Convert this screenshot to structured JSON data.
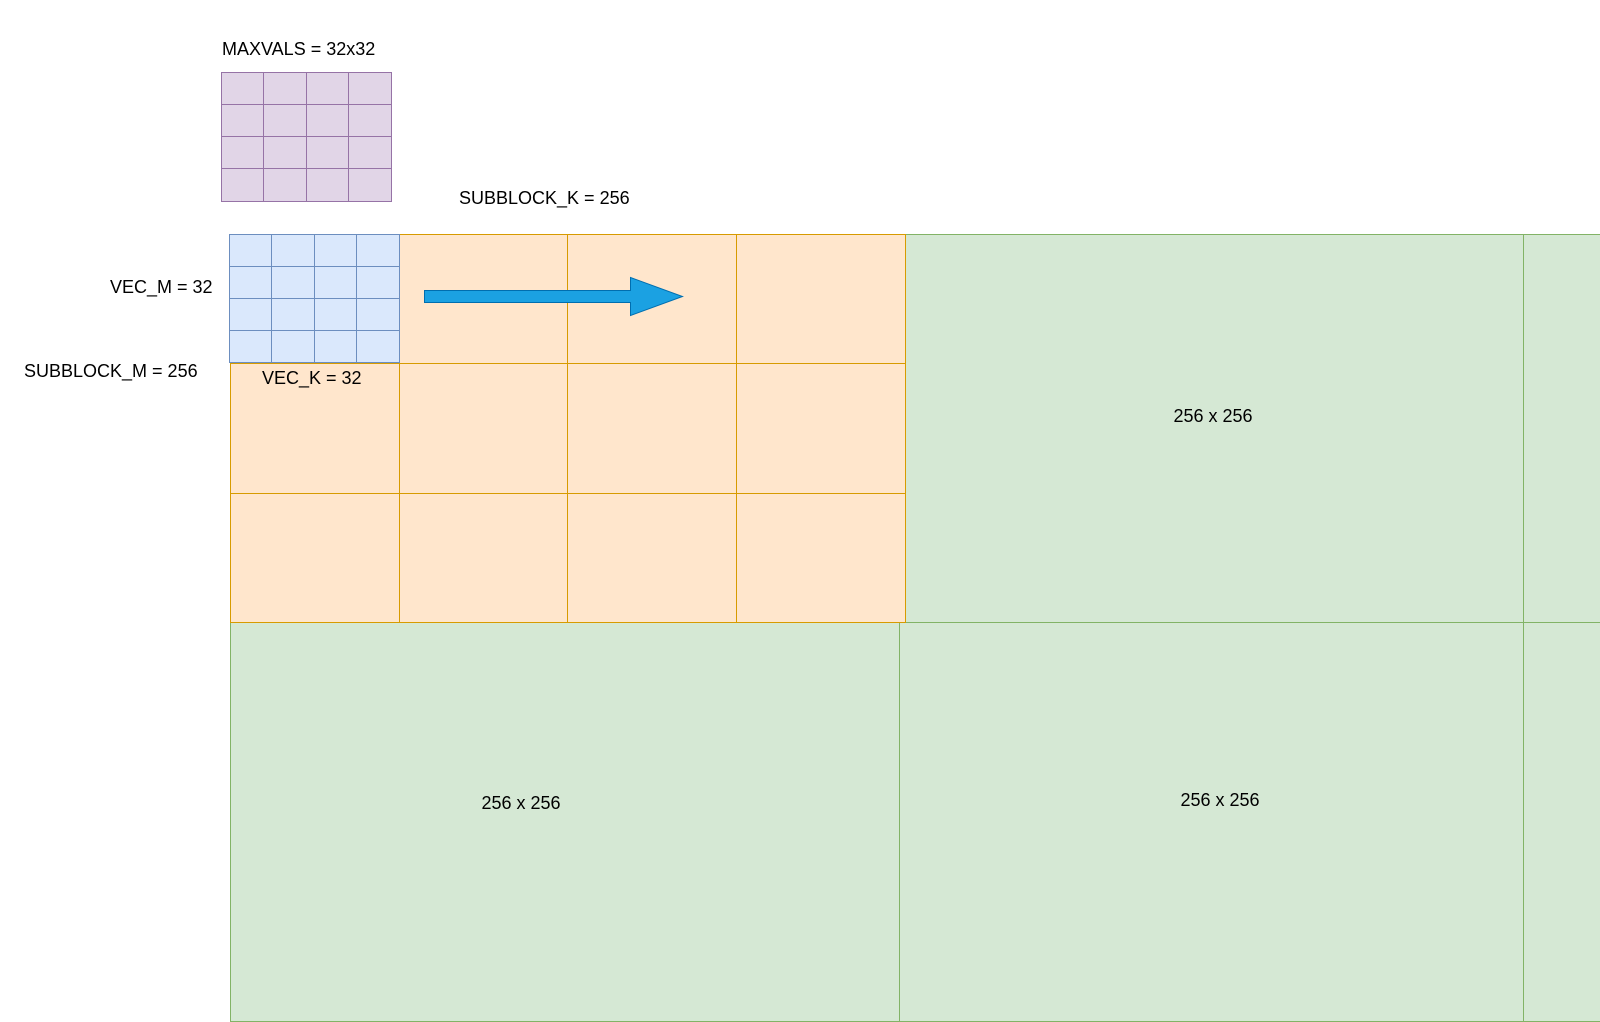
{
  "labels": {
    "maxvals": "MAXVALS = 32x32",
    "subblock_k": "SUBBLOCK_K = 256",
    "vec_m": "VEC_M = 32",
    "subblock_m": "SUBBLOCK_M = 256",
    "vec_k": "VEC_K = 32"
  },
  "blocks": {
    "green_top_right": "256 x 256",
    "green_bottom_left": "256 x 256",
    "green_bottom_right": "256 x 256"
  },
  "grids": {
    "maxvals": {
      "rows": 4,
      "cols": 4
    },
    "vec": {
      "rows": 4,
      "cols": 4
    },
    "subblock": {
      "rows": 3,
      "cols": 4
    }
  },
  "colors": {
    "purple_fill": "#e1d5e7",
    "purple_stroke": "#9673a6",
    "blue_fill": "#dae8fc",
    "blue_stroke": "#6c8ebf",
    "orange_fill": "#ffe6cc",
    "orange_stroke": "#d79b00",
    "green_fill": "#d5e8d4",
    "green_stroke": "#82b366",
    "arrow": "#1ba1e2"
  },
  "arrow": {
    "direction": "right"
  }
}
